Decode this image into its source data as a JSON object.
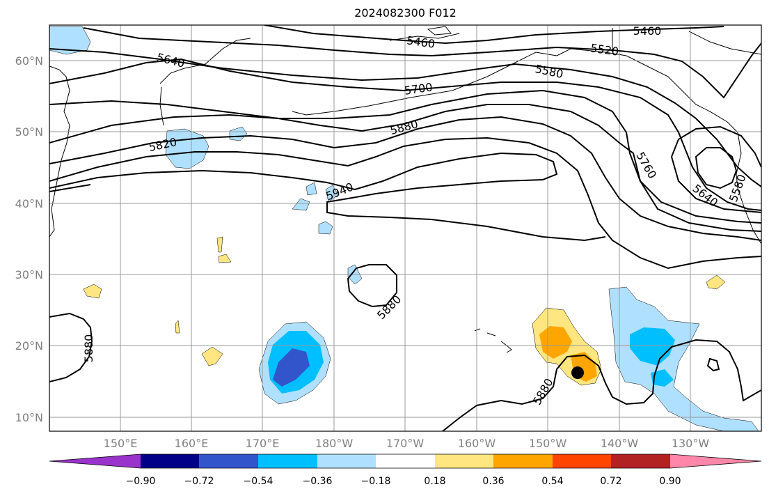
{
  "title": "2024082300 F012",
  "lat_ticks": [
    "60°N",
    "50°N",
    "40°N",
    "30°N",
    "20°N",
    "10°N"
  ],
  "lon_ticks": [
    "150°E",
    "160°E",
    "170°E",
    "180°W",
    "170°W",
    "160°W",
    "150°W",
    "140°W",
    "130°W"
  ],
  "contour_labels": [
    "5460",
    "5460",
    "5520",
    "5580",
    "5640",
    "5700",
    "5760",
    "5820",
    "5880",
    "5940",
    "5880",
    "5880",
    "5880",
    "5640",
    "5580"
  ],
  "colorbar": {
    "ticks": [
      "−0.90",
      "−0.72",
      "−0.54",
      "−0.36",
      "−0.18",
      "0.18",
      "0.36",
      "0.54",
      "0.72",
      "0.90"
    ],
    "colors": [
      "#9933cc",
      "#000088",
      "#3355cc",
      "#00bfff",
      "#b0e0ff",
      "#ffffff",
      "#ffe680",
      "#ffa500",
      "#ff4500",
      "#b22222",
      "#ff88aa"
    ]
  },
  "marker": "storm-center"
}
